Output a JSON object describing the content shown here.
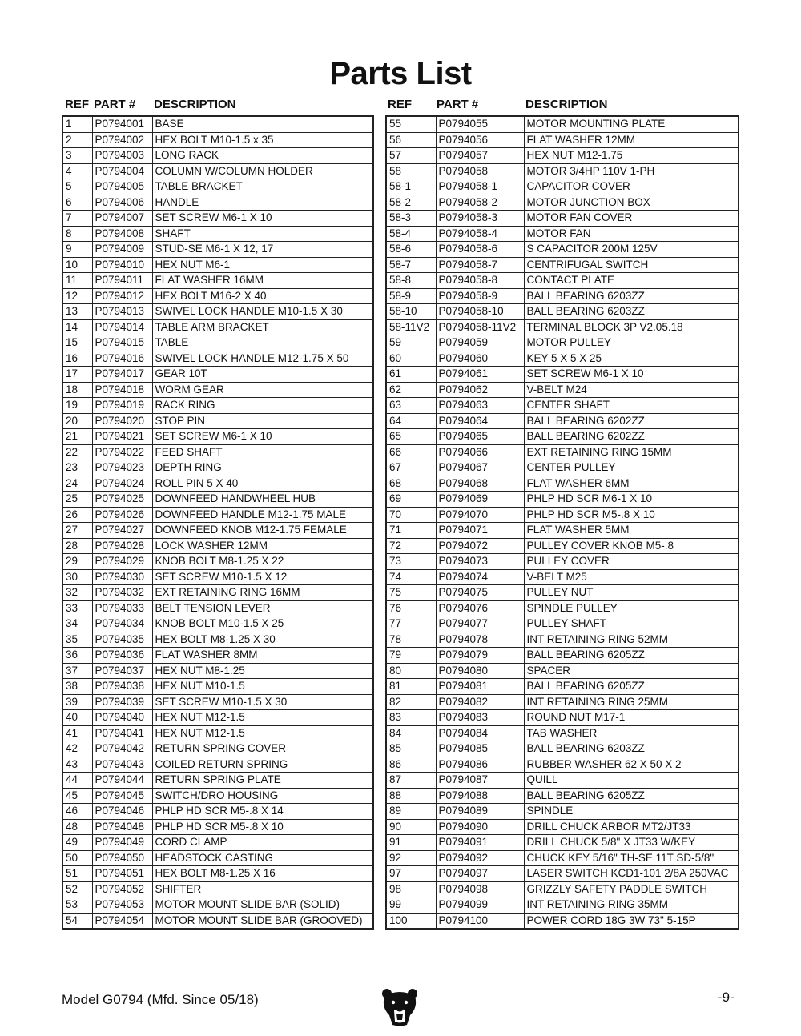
{
  "title": "Parts List",
  "headers": {
    "ref": "REF",
    "part": "PART #",
    "description": "DESCRIPTION"
  },
  "left_rows": [
    [
      "1",
      "P0794001",
      "BASE"
    ],
    [
      "2",
      "P0794002",
      "HEX BOLT M10-1.5 x 35"
    ],
    [
      "3",
      "P0794003",
      "LONG RACK"
    ],
    [
      "4",
      "P0794004",
      "COLUMN W/COLUMN HOLDER"
    ],
    [
      "5",
      "P0794005",
      "TABLE BRACKET"
    ],
    [
      "6",
      "P0794006",
      "HANDLE"
    ],
    [
      "7",
      "P0794007",
      "SET SCREW M6-1 X 10"
    ],
    [
      "8",
      "P0794008",
      "SHAFT"
    ],
    [
      "9",
      "P0794009",
      "STUD-SE M6-1 X 12, 17"
    ],
    [
      "10",
      "P0794010",
      "HEX NUT M6-1"
    ],
    [
      "11",
      "P0794011",
      "FLAT WASHER 16MM"
    ],
    [
      "12",
      "P0794012",
      "HEX BOLT M16-2 X 40"
    ],
    [
      "13",
      "P0794013",
      "SWIVEL LOCK HANDLE M10-1.5 X 30"
    ],
    [
      "14",
      "P0794014",
      "TABLE ARM BRACKET"
    ],
    [
      "15",
      "P0794015",
      "TABLE"
    ],
    [
      "16",
      "P0794016",
      "SWIVEL LOCK HANDLE M12-1.75 X 50"
    ],
    [
      "17",
      "P0794017",
      "GEAR 10T"
    ],
    [
      "18",
      "P0794018",
      "WORM GEAR"
    ],
    [
      "19",
      "P0794019",
      "RACK RING"
    ],
    [
      "20",
      "P0794020",
      "STOP PIN"
    ],
    [
      "21",
      "P0794021",
      "SET SCREW M6-1 X 10"
    ],
    [
      "22",
      "P0794022",
      "FEED SHAFT"
    ],
    [
      "23",
      "P0794023",
      "DEPTH RING"
    ],
    [
      "24",
      "P0794024",
      "ROLL PIN 5 X 40"
    ],
    [
      "25",
      "P0794025",
      "DOWNFEED HANDWHEEL HUB"
    ],
    [
      "26",
      "P0794026",
      "DOWNFEED HANDLE M12-1.75 MALE"
    ],
    [
      "27",
      "P0794027",
      "DOWNFEED KNOB M12-1.75 FEMALE"
    ],
    [
      "28",
      "P0794028",
      "LOCK WASHER 12MM"
    ],
    [
      "29",
      "P0794029",
      "KNOB BOLT M8-1.25 X 22"
    ],
    [
      "30",
      "P0794030",
      "SET SCREW M10-1.5 X 12"
    ],
    [
      "32",
      "P0794032",
      "EXT RETAINING RING 16MM"
    ],
    [
      "33",
      "P0794033",
      "BELT TENSION LEVER"
    ],
    [
      "34",
      "P0794034",
      "KNOB BOLT M10-1.5 X 25"
    ],
    [
      "35",
      "P0794035",
      "HEX BOLT M8-1.25 X 30"
    ],
    [
      "36",
      "P0794036",
      "FLAT WASHER 8MM"
    ],
    [
      "37",
      "P0794037",
      "HEX NUT M8-1.25"
    ],
    [
      "38",
      "P0794038",
      "HEX NUT M10-1.5"
    ],
    [
      "39",
      "P0794039",
      "SET SCREW M10-1.5 X 30"
    ],
    [
      "40",
      "P0794040",
      "HEX NUT M12-1.5"
    ],
    [
      "41",
      "P0794041",
      "HEX NUT M12-1.5"
    ],
    [
      "42",
      "P0794042",
      "RETURN SPRING COVER"
    ],
    [
      "43",
      "P0794043",
      "COILED RETURN SPRING"
    ],
    [
      "44",
      "P0794044",
      "RETURN SPRING PLATE"
    ],
    [
      "45",
      "P0794045",
      "SWITCH/DRO HOUSING"
    ],
    [
      "46",
      "P0794046",
      "PHLP HD SCR M5-.8 X 14"
    ],
    [
      "48",
      "P0794048",
      "PHLP HD SCR M5-.8 X 10"
    ],
    [
      "49",
      "P0794049",
      "CORD CLAMP"
    ],
    [
      "50",
      "P0794050",
      "HEADSTOCK CASTING"
    ],
    [
      "51",
      "P0794051",
      "HEX BOLT M8-1.25 X 16"
    ],
    [
      "52",
      "P0794052",
      "SHIFTER"
    ],
    [
      "53",
      "P0794053",
      "MOTOR MOUNT SLIDE BAR (SOLID)"
    ],
    [
      "54",
      "P0794054",
      "MOTOR MOUNT SLIDE BAR (GROOVED)"
    ]
  ],
  "right_rows": [
    [
      "55",
      "P0794055",
      "MOTOR MOUNTING PLATE"
    ],
    [
      "56",
      "P0794056",
      "FLAT WASHER 12MM"
    ],
    [
      "57",
      "P0794057",
      "HEX NUT M12-1.75"
    ],
    [
      "58",
      "P0794058",
      "MOTOR 3/4HP 110V 1-PH"
    ],
    [
      "58-1",
      "P0794058-1",
      "CAPACITOR COVER"
    ],
    [
      "58-2",
      "P0794058-2",
      "MOTOR JUNCTION BOX"
    ],
    [
      "58-3",
      "P0794058-3",
      "MOTOR FAN COVER"
    ],
    [
      "58-4",
      "P0794058-4",
      "MOTOR FAN"
    ],
    [
      "58-6",
      "P0794058-6",
      "S CAPACITOR 200M 125V"
    ],
    [
      "58-7",
      "P0794058-7",
      "CENTRIFUGAL SWITCH"
    ],
    [
      "58-8",
      "P0794058-8",
      "CONTACT PLATE"
    ],
    [
      "58-9",
      "P0794058-9",
      "BALL BEARING 6203ZZ"
    ],
    [
      "58-10",
      "P0794058-10",
      "BALL BEARING 6203ZZ"
    ],
    [
      "58-11V2",
      "P0794058-11V2",
      "TERMINAL BLOCK 3P V2.05.18"
    ],
    [
      "59",
      "P0794059",
      "MOTOR PULLEY"
    ],
    [
      "60",
      "P0794060",
      "KEY 5 X 5 X 25"
    ],
    [
      "61",
      "P0794061",
      "SET SCREW M6-1 X 10"
    ],
    [
      "62",
      "P0794062",
      "V-BELT M24"
    ],
    [
      "63",
      "P0794063",
      "CENTER SHAFT"
    ],
    [
      "64",
      "P0794064",
      "BALL BEARING 6202ZZ"
    ],
    [
      "65",
      "P0794065",
      "BALL BEARING 6202ZZ"
    ],
    [
      "66",
      "P0794066",
      "EXT RETAINING RING 15MM"
    ],
    [
      "67",
      "P0794067",
      "CENTER PULLEY"
    ],
    [
      "68",
      "P0794068",
      "FLAT WASHER 6MM"
    ],
    [
      "69",
      "P0794069",
      "PHLP HD SCR M6-1 X 10"
    ],
    [
      "70",
      "P0794070",
      "PHLP HD SCR M5-.8 X 10"
    ],
    [
      "71",
      "P0794071",
      "FLAT WASHER 5MM"
    ],
    [
      "72",
      "P0794072",
      "PULLEY COVER KNOB M5-.8"
    ],
    [
      "73",
      "P0794073",
      "PULLEY COVER"
    ],
    [
      "74",
      "P0794074",
      "V-BELT M25"
    ],
    [
      "75",
      "P0794075",
      "PULLEY NUT"
    ],
    [
      "76",
      "P0794076",
      "SPINDLE PULLEY"
    ],
    [
      "77",
      "P0794077",
      "PULLEY SHAFT"
    ],
    [
      "78",
      "P0794078",
      "INT RETAINING RING 52MM"
    ],
    [
      "79",
      "P0794079",
      "BALL BEARING 6205ZZ"
    ],
    [
      "80",
      "P0794080",
      "SPACER"
    ],
    [
      "81",
      "P0794081",
      "BALL BEARING 6205ZZ"
    ],
    [
      "82",
      "P0794082",
      "INT RETAINING RING 25MM"
    ],
    [
      "83",
      "P0794083",
      "ROUND NUT M17-1"
    ],
    [
      "84",
      "P0794084",
      "TAB WASHER"
    ],
    [
      "85",
      "P0794085",
      "BALL BEARING 6203ZZ"
    ],
    [
      "86",
      "P0794086",
      "RUBBER WASHER 62 X 50 X 2"
    ],
    [
      "87",
      "P0794087",
      "QUILL"
    ],
    [
      "88",
      "P0794088",
      "BALL BEARING 6205ZZ"
    ],
    [
      "89",
      "P0794089",
      "SPINDLE"
    ],
    [
      "90",
      "P0794090",
      "DRILL CHUCK ARBOR MT2/JT33"
    ],
    [
      "91",
      "P0794091",
      "DRILL CHUCK 5/8\" X JT33 W/KEY"
    ],
    [
      "92",
      "P0794092",
      "CHUCK KEY 5/16\" TH-SE 11T SD-5/8\""
    ],
    [
      "97",
      "P0794097",
      "LASER SWITCH KCD1-101 2/8A 250VAC"
    ],
    [
      "98",
      "P0794098",
      "GRIZZLY SAFETY PADDLE SWITCH"
    ],
    [
      "99",
      "P0794099",
      "INT RETAINING RING 35MM"
    ],
    [
      "100",
      "P0794100",
      "POWER CORD 18G 3W 73\" 5-15P"
    ]
  ],
  "footer": {
    "model": "Model G0794 (Mfd. Since 05/18)",
    "page": "-9-",
    "logo": "grizzly-bear-logo"
  }
}
